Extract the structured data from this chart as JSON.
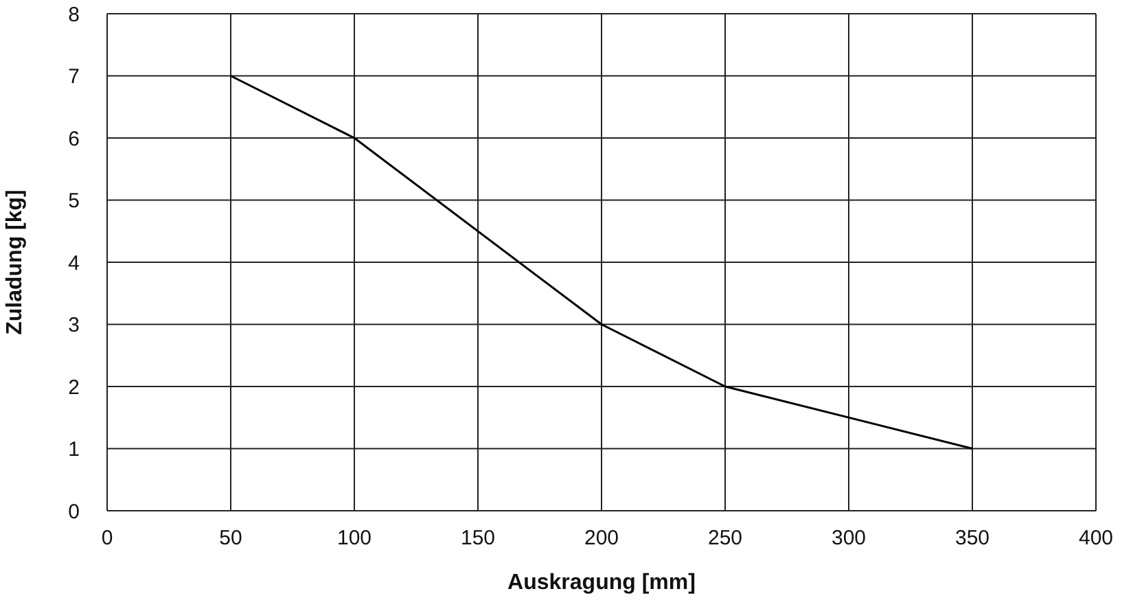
{
  "chart_data": {
    "type": "line",
    "xlabel": "Auskragung [mm]",
    "ylabel": "Zuladung [kg]",
    "x": [
      50,
      100,
      200,
      250,
      350
    ],
    "series": [
      {
        "color": "#000000",
        "values": [
          7,
          6,
          3,
          2,
          1
        ]
      }
    ],
    "xlim": [
      0,
      400
    ],
    "xticks": [
      0,
      50,
      100,
      150,
      200,
      250,
      300,
      350,
      400
    ],
    "ylim": [
      0,
      8
    ],
    "yticks": [
      0,
      1,
      2,
      3,
      4,
      5,
      6,
      7,
      8
    ],
    "grid": true,
    "marker": "none",
    "line_style": "solid"
  }
}
